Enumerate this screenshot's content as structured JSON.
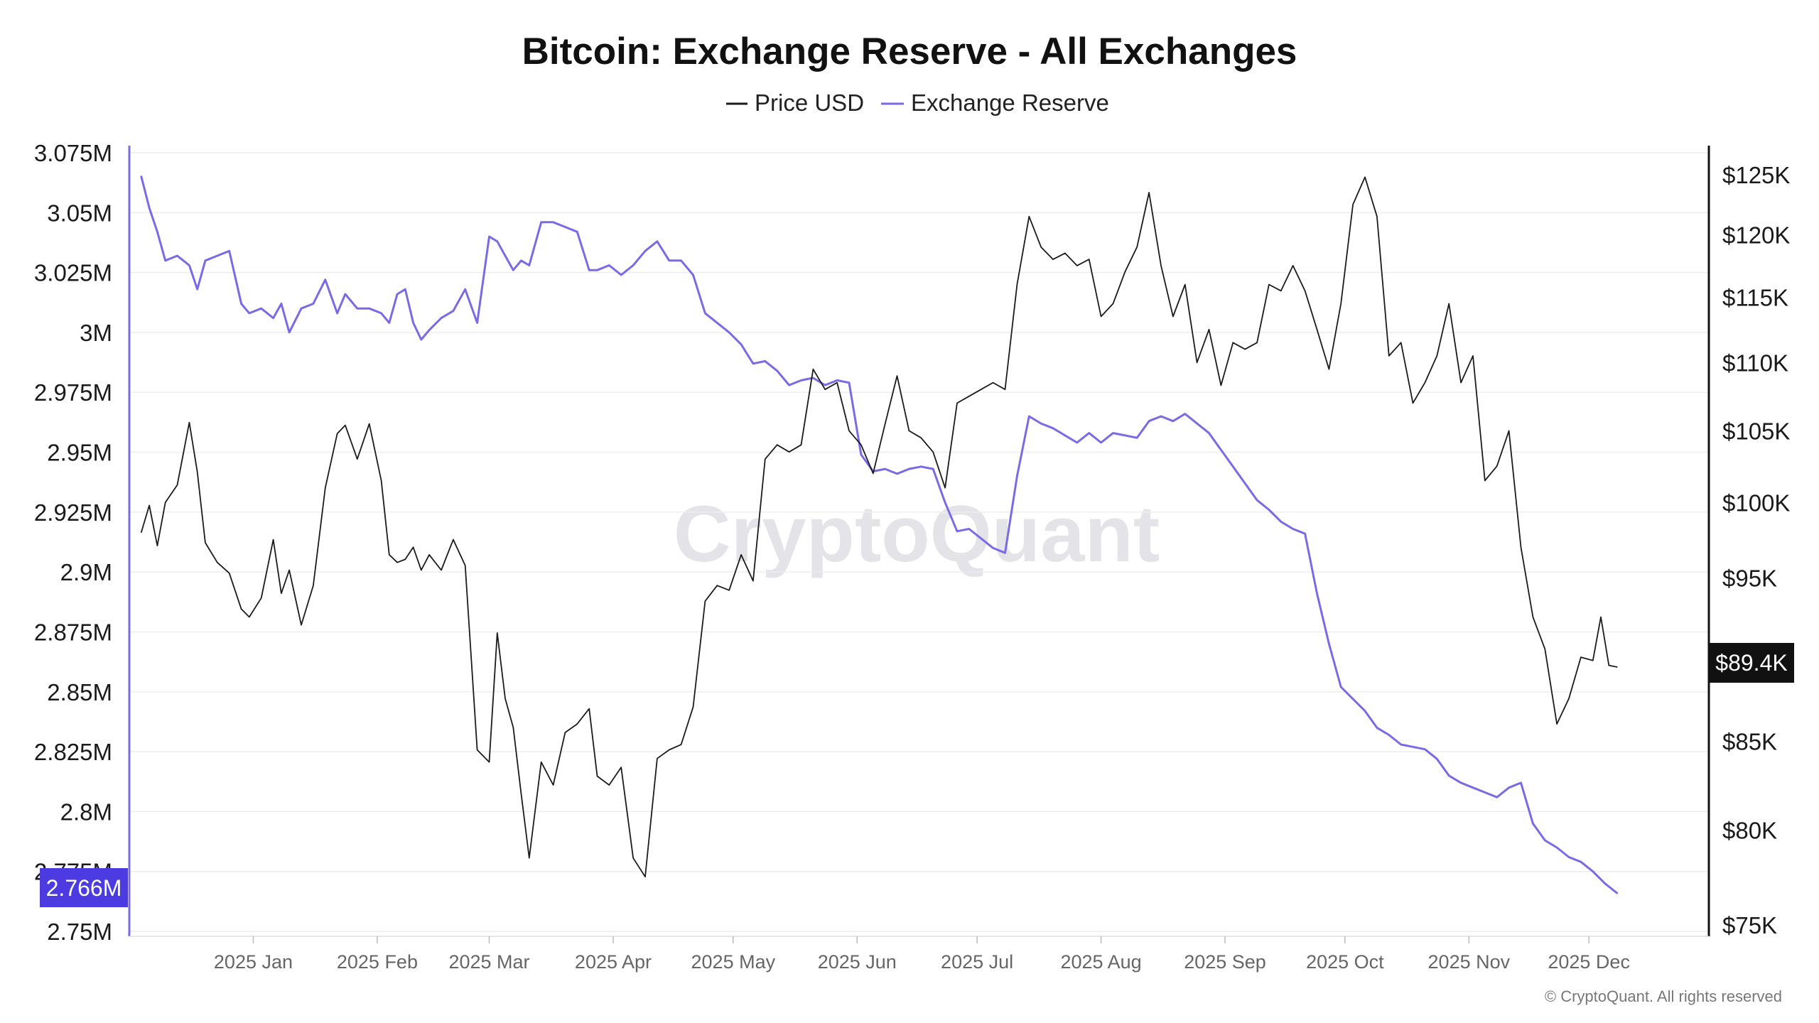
{
  "chart_data": {
    "type": "line",
    "title": "Bitcoin: Exchange Reserve - All Exchanges",
    "legend": [
      "Price USD",
      "Exchange Reserve"
    ],
    "legend_placement": "top-center",
    "grid": true,
    "x_ticks": [
      "2025 Jan",
      "2025 Feb",
      "2025 Mar",
      "2025 Apr",
      "2025 May",
      "2025 Jun",
      "2025 Jul",
      "2025 Aug",
      "2025 Sep",
      "2025 Oct",
      "2025 Nov",
      "2025 Dec"
    ],
    "y_left": {
      "ticks": [
        "3.075M",
        "3.05M",
        "3.025M",
        "3M",
        "2.975M",
        "2.95M",
        "2.925M",
        "2.9M",
        "2.875M",
        "2.85M",
        "2.825M",
        "2.8M",
        "2.775M",
        "2.75M"
      ],
      "range": [
        2.75,
        3.075
      ],
      "unit": "M BTC"
    },
    "y_right": {
      "ticks": [
        "$125K",
        "$120K",
        "$115K",
        "$110K",
        "$105K",
        "$100K",
        "$95K",
        "$85K",
        "$80K",
        "$75K"
      ],
      "range": [
        75,
        125
      ],
      "unit": "K USD",
      "scale": "log"
    },
    "current_value_labels": {
      "reserve": "2.766M",
      "price": "$89.4K"
    },
    "series": [
      {
        "name": "Exchange Reserve",
        "color": "#7a6ae6",
        "axis": "left",
        "points": [
          [
            "2024-12-04",
            3.065
          ],
          [
            "2024-12-06",
            3.052
          ],
          [
            "2024-12-08",
            3.042
          ],
          [
            "2024-12-10",
            3.03
          ],
          [
            "2024-12-13",
            3.032
          ],
          [
            "2024-12-16",
            3.028
          ],
          [
            "2024-12-18",
            3.018
          ],
          [
            "2024-12-20",
            3.03
          ],
          [
            "2024-12-23",
            3.032
          ],
          [
            "2024-12-26",
            3.034
          ],
          [
            "2024-12-29",
            3.012
          ],
          [
            "2024-12-31",
            3.008
          ],
          [
            "2025-01-03",
            3.01
          ],
          [
            "2025-01-06",
            3.006
          ],
          [
            "2025-01-08",
            3.012
          ],
          [
            "2025-01-10",
            3.0
          ],
          [
            "2025-01-13",
            3.01
          ],
          [
            "2025-01-16",
            3.012
          ],
          [
            "2025-01-19",
            3.022
          ],
          [
            "2025-01-22",
            3.008
          ],
          [
            "2025-01-24",
            3.016
          ],
          [
            "2025-01-27",
            3.01
          ],
          [
            "2025-01-30",
            3.01
          ],
          [
            "2025-02-02",
            3.008
          ],
          [
            "2025-02-04",
            3.004
          ],
          [
            "2025-02-06",
            3.016
          ],
          [
            "2025-02-08",
            3.018
          ],
          [
            "2025-02-10",
            3.004
          ],
          [
            "2025-02-12",
            2.997
          ],
          [
            "2025-02-14",
            3.001
          ],
          [
            "2025-02-17",
            3.006
          ],
          [
            "2025-02-20",
            3.009
          ],
          [
            "2025-02-23",
            3.018
          ],
          [
            "2025-02-26",
            3.004
          ],
          [
            "2025-03-01",
            3.04
          ],
          [
            "2025-03-03",
            3.038
          ],
          [
            "2025-03-05",
            3.032
          ],
          [
            "2025-03-07",
            3.026
          ],
          [
            "2025-03-09",
            3.03
          ],
          [
            "2025-03-11",
            3.028
          ],
          [
            "2025-03-14",
            3.046
          ],
          [
            "2025-03-17",
            3.046
          ],
          [
            "2025-03-20",
            3.044
          ],
          [
            "2025-03-23",
            3.042
          ],
          [
            "2025-03-26",
            3.026
          ],
          [
            "2025-03-28",
            3.026
          ],
          [
            "2025-03-31",
            3.028
          ],
          [
            "2025-04-03",
            3.024
          ],
          [
            "2025-04-06",
            3.028
          ],
          [
            "2025-04-09",
            3.034
          ],
          [
            "2025-04-12",
            3.038
          ],
          [
            "2025-04-15",
            3.03
          ],
          [
            "2025-04-18",
            3.03
          ],
          [
            "2025-04-21",
            3.024
          ],
          [
            "2025-04-24",
            3.008
          ],
          [
            "2025-04-27",
            3.004
          ],
          [
            "2025-04-30",
            3.0
          ],
          [
            "2025-05-03",
            2.995
          ],
          [
            "2025-05-06",
            2.987
          ],
          [
            "2025-05-09",
            2.988
          ],
          [
            "2025-05-12",
            2.984
          ],
          [
            "2025-05-15",
            2.978
          ],
          [
            "2025-05-18",
            2.98
          ],
          [
            "2025-05-21",
            2.981
          ],
          [
            "2025-05-24",
            2.978
          ],
          [
            "2025-05-27",
            2.98
          ],
          [
            "2025-05-30",
            2.979
          ],
          [
            "2025-06-02",
            2.949
          ],
          [
            "2025-06-05",
            2.942
          ],
          [
            "2025-06-08",
            2.943
          ],
          [
            "2025-06-11",
            2.941
          ],
          [
            "2025-06-14",
            2.943
          ],
          [
            "2025-06-17",
            2.944
          ],
          [
            "2025-06-20",
            2.943
          ],
          [
            "2025-06-23",
            2.929
          ],
          [
            "2025-06-26",
            2.917
          ],
          [
            "2025-06-29",
            2.918
          ],
          [
            "2025-07-02",
            2.914
          ],
          [
            "2025-07-05",
            2.91
          ],
          [
            "2025-07-08",
            2.908
          ],
          [
            "2025-07-11",
            2.94
          ],
          [
            "2025-07-14",
            2.965
          ],
          [
            "2025-07-17",
            2.962
          ],
          [
            "2025-07-20",
            2.96
          ],
          [
            "2025-07-23",
            2.957
          ],
          [
            "2025-07-26",
            2.954
          ],
          [
            "2025-07-29",
            2.958
          ],
          [
            "2025-08-01",
            2.954
          ],
          [
            "2025-08-04",
            2.958
          ],
          [
            "2025-08-07",
            2.957
          ],
          [
            "2025-08-10",
            2.956
          ],
          [
            "2025-08-13",
            2.963
          ],
          [
            "2025-08-16",
            2.965
          ],
          [
            "2025-08-19",
            2.963
          ],
          [
            "2025-08-22",
            2.966
          ],
          [
            "2025-08-25",
            2.962
          ],
          [
            "2025-08-28",
            2.958
          ],
          [
            "2025-08-31",
            2.951
          ],
          [
            "2025-09-03",
            2.944
          ],
          [
            "2025-09-06",
            2.937
          ],
          [
            "2025-09-09",
            2.93
          ],
          [
            "2025-09-12",
            2.926
          ],
          [
            "2025-09-15",
            2.921
          ],
          [
            "2025-09-18",
            2.918
          ],
          [
            "2025-09-21",
            2.916
          ],
          [
            "2025-09-24",
            2.891
          ],
          [
            "2025-09-27",
            2.87
          ],
          [
            "2025-09-30",
            2.852
          ],
          [
            "2025-10-03",
            2.847
          ],
          [
            "2025-10-06",
            2.842
          ],
          [
            "2025-10-09",
            2.835
          ],
          [
            "2025-10-12",
            2.832
          ],
          [
            "2025-10-15",
            2.828
          ],
          [
            "2025-10-18",
            2.827
          ],
          [
            "2025-10-21",
            2.826
          ],
          [
            "2025-10-24",
            2.822
          ],
          [
            "2025-10-27",
            2.815
          ],
          [
            "2025-10-30",
            2.812
          ],
          [
            "2025-11-02",
            2.81
          ],
          [
            "2025-11-05",
            2.808
          ],
          [
            "2025-11-08",
            2.806
          ],
          [
            "2025-11-11",
            2.81
          ],
          [
            "2025-11-14",
            2.812
          ],
          [
            "2025-11-17",
            2.795
          ],
          [
            "2025-11-20",
            2.788
          ],
          [
            "2025-11-23",
            2.785
          ],
          [
            "2025-11-26",
            2.781
          ],
          [
            "2025-11-29",
            2.779
          ],
          [
            "2025-12-02",
            2.775
          ],
          [
            "2025-12-05",
            2.77
          ],
          [
            "2025-12-08",
            2.766
          ]
        ]
      },
      {
        "name": "Price USD",
        "color": "#1b1b1b",
        "axis": "right",
        "points": [
          [
            "2024-12-04",
            98.0
          ],
          [
            "2024-12-06",
            99.8
          ],
          [
            "2024-12-08",
            97.1
          ],
          [
            "2024-12-10",
            100.0
          ],
          [
            "2024-12-13",
            101.2
          ],
          [
            "2024-12-16",
            105.6
          ],
          [
            "2024-12-18",
            102.1
          ],
          [
            "2024-12-20",
            97.3
          ],
          [
            "2024-12-23",
            96.0
          ],
          [
            "2024-12-26",
            95.3
          ],
          [
            "2024-12-29",
            93.0
          ],
          [
            "2024-12-31",
            92.5
          ],
          [
            "2025-01-03",
            93.7
          ],
          [
            "2025-01-06",
            97.5
          ],
          [
            "2025-01-08",
            94.0
          ],
          [
            "2025-01-10",
            95.5
          ],
          [
            "2025-01-13",
            92.0
          ],
          [
            "2025-01-16",
            94.5
          ],
          [
            "2025-01-19",
            101.0
          ],
          [
            "2025-01-22",
            104.8
          ],
          [
            "2025-01-24",
            105.4
          ],
          [
            "2025-01-27",
            103.0
          ],
          [
            "2025-01-30",
            105.5
          ],
          [
            "2025-02-02",
            101.5
          ],
          [
            "2025-02-04",
            96.5
          ],
          [
            "2025-02-06",
            96.0
          ],
          [
            "2025-02-08",
            96.2
          ],
          [
            "2025-02-10",
            97.0
          ],
          [
            "2025-02-12",
            95.5
          ],
          [
            "2025-02-14",
            96.5
          ],
          [
            "2025-02-17",
            95.5
          ],
          [
            "2025-02-20",
            97.5
          ],
          [
            "2025-02-23",
            95.8
          ],
          [
            "2025-02-26",
            84.5
          ],
          [
            "2025-03-01",
            83.8
          ],
          [
            "2025-03-03",
            91.5
          ],
          [
            "2025-03-05",
            87.5
          ],
          [
            "2025-03-07",
            85.8
          ],
          [
            "2025-03-09",
            82.0
          ],
          [
            "2025-03-11",
            78.5
          ],
          [
            "2025-03-14",
            83.8
          ],
          [
            "2025-03-17",
            82.5
          ],
          [
            "2025-03-20",
            85.5
          ],
          [
            "2025-03-23",
            86.0
          ],
          [
            "2025-03-26",
            86.9
          ],
          [
            "2025-03-28",
            83.0
          ],
          [
            "2025-03-31",
            82.5
          ],
          [
            "2025-04-03",
            83.5
          ],
          [
            "2025-04-06",
            78.5
          ],
          [
            "2025-04-09",
            77.5
          ],
          [
            "2025-04-12",
            84.0
          ],
          [
            "2025-04-15",
            84.5
          ],
          [
            "2025-04-18",
            84.8
          ],
          [
            "2025-04-21",
            87.0
          ],
          [
            "2025-04-24",
            93.5
          ],
          [
            "2025-04-27",
            94.5
          ],
          [
            "2025-04-30",
            94.2
          ],
          [
            "2025-05-03",
            96.5
          ],
          [
            "2025-05-06",
            94.8
          ],
          [
            "2025-05-09",
            103.0
          ],
          [
            "2025-05-12",
            104.0
          ],
          [
            "2025-05-15",
            103.5
          ],
          [
            "2025-05-18",
            104.0
          ],
          [
            "2025-05-21",
            109.5
          ],
          [
            "2025-05-24",
            108.0
          ],
          [
            "2025-05-27",
            108.5
          ],
          [
            "2025-05-30",
            105.0
          ],
          [
            "2025-06-02",
            104.0
          ],
          [
            "2025-06-05",
            102.0
          ],
          [
            "2025-06-08",
            105.5
          ],
          [
            "2025-06-11",
            109.0
          ],
          [
            "2025-06-14",
            105.0
          ],
          [
            "2025-06-17",
            104.5
          ],
          [
            "2025-06-20",
            103.5
          ],
          [
            "2025-06-23",
            101.0
          ],
          [
            "2025-06-26",
            107.0
          ],
          [
            "2025-06-29",
            107.5
          ],
          [
            "2025-07-02",
            108.0
          ],
          [
            "2025-07-05",
            108.5
          ],
          [
            "2025-07-08",
            108.0
          ],
          [
            "2025-07-11",
            116.0
          ],
          [
            "2025-07-14",
            121.5
          ],
          [
            "2025-07-17",
            119.0
          ],
          [
            "2025-07-20",
            118.0
          ],
          [
            "2025-07-23",
            118.5
          ],
          [
            "2025-07-26",
            117.5
          ],
          [
            "2025-07-29",
            118.0
          ],
          [
            "2025-08-01",
            113.5
          ],
          [
            "2025-08-04",
            114.5
          ],
          [
            "2025-08-07",
            117.0
          ],
          [
            "2025-08-10",
            119.0
          ],
          [
            "2025-08-13",
            123.5
          ],
          [
            "2025-08-16",
            117.5
          ],
          [
            "2025-08-19",
            113.5
          ],
          [
            "2025-08-22",
            116.0
          ],
          [
            "2025-08-25",
            110.0
          ],
          [
            "2025-08-28",
            112.5
          ],
          [
            "2025-08-31",
            108.3
          ],
          [
            "2025-09-03",
            111.5
          ],
          [
            "2025-09-06",
            111.0
          ],
          [
            "2025-09-09",
            111.5
          ],
          [
            "2025-09-12",
            116.0
          ],
          [
            "2025-09-15",
            115.5
          ],
          [
            "2025-09-18",
            117.5
          ],
          [
            "2025-09-21",
            115.5
          ],
          [
            "2025-09-24",
            112.5
          ],
          [
            "2025-09-27",
            109.5
          ],
          [
            "2025-09-30",
            114.5
          ],
          [
            "2025-10-03",
            122.5
          ],
          [
            "2025-10-06",
            124.8
          ],
          [
            "2025-10-09",
            121.5
          ],
          [
            "2025-10-12",
            110.5
          ],
          [
            "2025-10-15",
            111.5
          ],
          [
            "2025-10-18",
            107.0
          ],
          [
            "2025-10-21",
            108.5
          ],
          [
            "2025-10-24",
            110.5
          ],
          [
            "2025-10-27",
            114.5
          ],
          [
            "2025-10-30",
            108.5
          ],
          [
            "2025-11-02",
            110.5
          ],
          [
            "2025-11-05",
            101.5
          ],
          [
            "2025-11-08",
            102.5
          ],
          [
            "2025-11-11",
            105.0
          ],
          [
            "2025-11-14",
            97.0
          ],
          [
            "2025-11-17",
            92.5
          ],
          [
            "2025-11-20",
            90.5
          ],
          [
            "2025-11-23",
            86.0
          ],
          [
            "2025-11-26",
            87.5
          ],
          [
            "2025-11-29",
            90.0
          ],
          [
            "2025-12-02",
            89.8
          ],
          [
            "2025-12-04",
            92.5
          ],
          [
            "2025-12-06",
            89.5
          ],
          [
            "2025-12-08",
            89.4
          ]
        ]
      }
    ]
  },
  "watermark": "CryptoQuant",
  "copyright": "© CryptoQuant. All rights reserved",
  "colors": {
    "reserve": "#7a6ae6",
    "price": "#1b1b1b",
    "reserve_badge": "#4c3be0",
    "price_badge": "#111111",
    "grid": "#eeeeee"
  }
}
